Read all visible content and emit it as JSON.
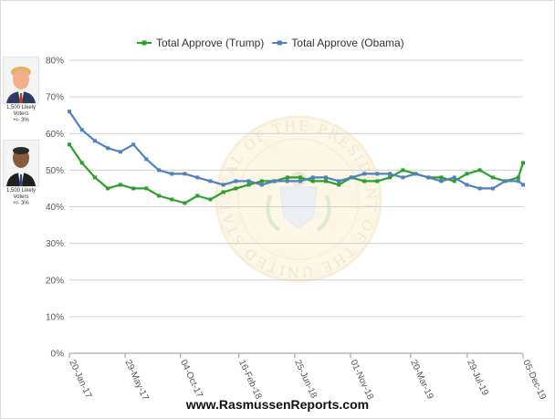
{
  "footer": "www.RasmussenReports.com",
  "side_panel": [
    {
      "caption": "1,500 Likely\nVoters\n+/- 3%",
      "portrait": "trump-portrait"
    },
    {
      "caption": "1,500 Likely\nVoters\n+/- 3%",
      "portrait": "obama-portrait"
    }
  ],
  "watermark": {
    "text": "SEAL OF THE PRESIDENT OF THE UNITED STATES",
    "icon": "presidential-seal"
  },
  "chart_data": {
    "type": "line",
    "title": "",
    "xlabel": "",
    "ylabel": "",
    "ylim": [
      0,
      80
    ],
    "y_ticks": [
      "0%",
      "10%",
      "20%",
      "30%",
      "40%",
      "50%",
      "60%",
      "70%",
      "80%"
    ],
    "x_ticks": [
      "20-Jan-17",
      "29-May-17",
      "04-Oct-17",
      "16-Feb-18",
      "25-Jun-18",
      "01-Nov-18",
      "20-Mar-19",
      "29-Jul-19",
      "05-Dec-19"
    ],
    "x_range": [
      "20-Jan-17",
      "05-Dec-19"
    ],
    "grid": true,
    "legend": "top-center",
    "x": [
      "20-Jan-17",
      "18-Feb-17",
      "20-Mar-17",
      "19-Apr-17",
      "18-May-17",
      "17-Jun-17",
      "17-Jul-17",
      "15-Aug-17",
      "14-Sep-17",
      "14-Oct-17",
      "12-Nov-17",
      "12-Dec-17",
      "11-Jan-18",
      "9-Feb-18",
      "11-Mar-18",
      "10-Apr-18",
      "9-May-18",
      "8-Jun-18",
      "8-Jul-18",
      "6-Aug-18",
      "5-Sep-18",
      "5-Oct-18",
      "3-Nov-18",
      "3-Dec-18",
      "2-Jan-19",
      "31-Jan-19",
      "2-Mar-19",
      "1-Apr-19",
      "30-Apr-19",
      "30-May-19",
      "29-Jun-19",
      "28-Jul-19",
      "27-Aug-19",
      "26-Sep-19",
      "25-Oct-19",
      "24-Nov-19",
      "5-Dec-19"
    ],
    "series": [
      {
        "name": "Total Approve (Trump)",
        "color": "#2ca02c",
        "marker": "square",
        "values": [
          57,
          52,
          48,
          45,
          46,
          45,
          45,
          43,
          42,
          41,
          43,
          42,
          44,
          45,
          46,
          47,
          47,
          48,
          48,
          47,
          47,
          46,
          48,
          47,
          47,
          48,
          50,
          49,
          48,
          48,
          47,
          49,
          50,
          48,
          47,
          48,
          52
        ]
      },
      {
        "name": "Total Approve (Obama)",
        "color": "#4f81bd",
        "marker": "square",
        "values": [
          66,
          61,
          58,
          56,
          55,
          57,
          53,
          50,
          49,
          49,
          48,
          47,
          46,
          47,
          47,
          46,
          47,
          47,
          47,
          48,
          48,
          47,
          48,
          49,
          49,
          49,
          48,
          49,
          48,
          47,
          48,
          46,
          45,
          45,
          47,
          47,
          46
        ]
      }
    ]
  }
}
